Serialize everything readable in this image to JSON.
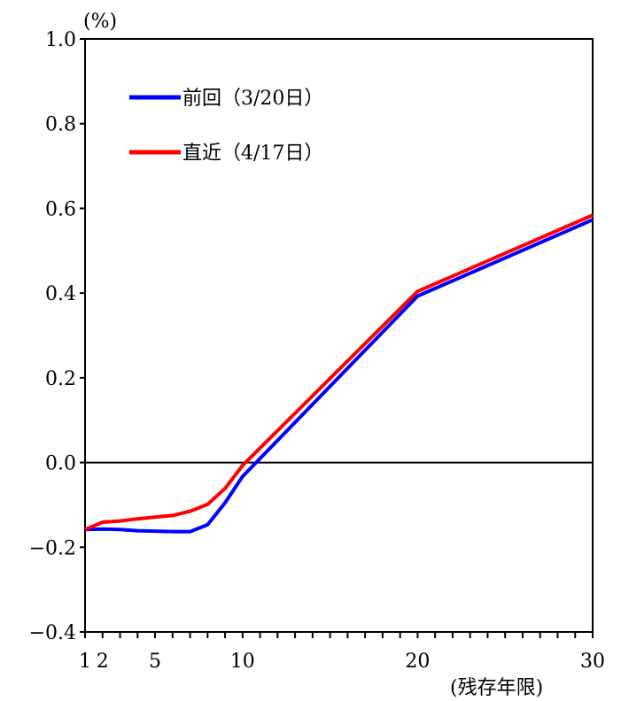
{
  "chart_data": {
    "type": "line",
    "y_unit": "(%)",
    "x_unit": "(残存年限)",
    "xlim": [
      1,
      30
    ],
    "ylim": [
      -0.4,
      1.0
    ],
    "x_ticks": [
      1,
      2,
      5,
      10,
      20,
      30
    ],
    "y_ticks": [
      1.0,
      0.8,
      0.6,
      0.4,
      0.2,
      0.0,
      -0.2,
      -0.4
    ],
    "y_tick_labels": [
      "1.0",
      "0.8",
      "0.6",
      "0.4",
      "0.2",
      "0.0",
      "−0.2",
      "−0.4"
    ],
    "grid": false,
    "zero_line": true,
    "legend_position": "top-left",
    "series": [
      {
        "name": "前回（3/20日）",
        "color": "#0000ff",
        "x": [
          1,
          2,
          3,
          4,
          5,
          6,
          7,
          8,
          9,
          10,
          20,
          30
        ],
        "y": [
          -0.158,
          -0.157,
          -0.158,
          -0.161,
          -0.162,
          -0.163,
          -0.163,
          -0.147,
          -0.095,
          -0.033,
          0.393,
          0.573
        ]
      },
      {
        "name": "直近（4/17日）",
        "color": "#ff0000",
        "x": [
          1,
          2,
          3,
          4,
          5,
          6,
          7,
          8,
          9,
          10,
          20,
          30
        ],
        "y": [
          -0.158,
          -0.141,
          -0.138,
          -0.133,
          -0.129,
          -0.125,
          -0.115,
          -0.099,
          -0.061,
          -0.007,
          0.404,
          0.584
        ]
      }
    ]
  }
}
